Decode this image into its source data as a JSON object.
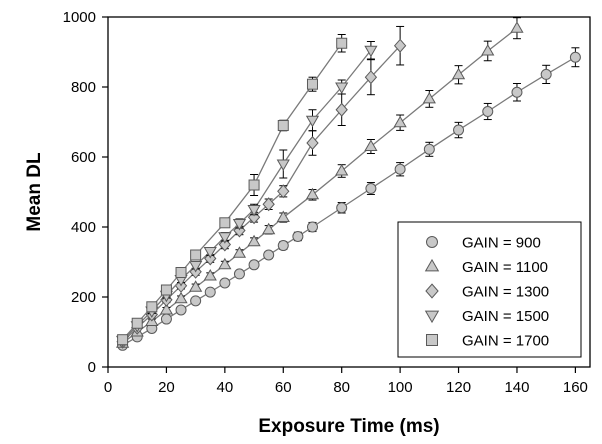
{
  "chart_data": {
    "type": "scatter",
    "title": "",
    "xlabel": "Exposure Time (ms)",
    "ylabel": "Mean DL",
    "xlim": [
      0,
      165
    ],
    "ylim": [
      0,
      1000
    ],
    "x_ticks": [
      0,
      20,
      40,
      60,
      80,
      100,
      120,
      140,
      160
    ],
    "y_ticks": [
      0,
      200,
      400,
      600,
      800,
      1000
    ],
    "grid": false,
    "legend_position": "bottom-right",
    "error_bars": true,
    "series": [
      {
        "name": "GAIN = 900",
        "marker": "circle",
        "x": [
          5,
          10,
          15,
          20,
          25,
          30,
          35,
          40,
          45,
          50,
          55,
          60,
          65,
          70,
          80,
          90,
          100,
          110,
          120,
          130,
          140,
          150,
          160
        ],
        "y": [
          62,
          86,
          110,
          137,
          163,
          189,
          214,
          240,
          266,
          292,
          320,
          347,
          373,
          400,
          455,
          510,
          565,
          622,
          677,
          730,
          785,
          836,
          885
        ],
        "err": [
          5,
          6,
          6,
          7,
          7,
          8,
          8,
          9,
          9,
          10,
          10,
          11,
          12,
          13,
          15,
          17,
          19,
          20,
          22,
          23,
          25,
          26,
          27
        ]
      },
      {
        "name": "GAIN = 1100",
        "marker": "triangle-up",
        "x": [
          5,
          10,
          15,
          20,
          25,
          30,
          35,
          40,
          45,
          50,
          55,
          60,
          70,
          80,
          90,
          100,
          110,
          120,
          130,
          140
        ],
        "y": [
          68,
          100,
          130,
          163,
          195,
          228,
          260,
          292,
          325,
          358,
          392,
          427,
          492,
          560,
          630,
          698,
          766,
          835,
          903,
          968
        ],
        "err": [
          5,
          6,
          7,
          7,
          8,
          9,
          9,
          10,
          10,
          11,
          12,
          13,
          15,
          18,
          20,
          22,
          24,
          26,
          28,
          30
        ]
      },
      {
        "name": "GAIN = 1300",
        "marker": "diamond",
        "x": [
          5,
          10,
          15,
          20,
          25,
          30,
          35,
          40,
          45,
          50,
          55,
          60,
          70,
          80,
          90,
          100
        ],
        "y": [
          72,
          112,
          150,
          192,
          232,
          272,
          310,
          350,
          390,
          428,
          465,
          502,
          640,
          735,
          828,
          918
        ],
        "err": [
          5,
          6,
          7,
          8,
          9,
          10,
          11,
          12,
          12,
          14,
          15,
          16,
          35,
          45,
          50,
          55
        ]
      },
      {
        "name": "GAIN = 1500",
        "marker": "triangle-down",
        "x": [
          5,
          10,
          15,
          20,
          25,
          30,
          35,
          40,
          45,
          50,
          60,
          70,
          80,
          90
        ],
        "y": [
          76,
          118,
          160,
          205,
          250,
          290,
          330,
          372,
          410,
          450,
          580,
          705,
          800,
          905
        ],
        "err": [
          5,
          6,
          7,
          8,
          9,
          10,
          11,
          12,
          13,
          15,
          40,
          30,
          20,
          25
        ]
      },
      {
        "name": "GAIN = 1700",
        "marker": "square",
        "x": [
          5,
          10,
          15,
          20,
          25,
          30,
          40,
          50,
          60,
          70,
          80
        ],
        "y": [
          78,
          125,
          172,
          220,
          270,
          320,
          412,
          520,
          690,
          808,
          925
        ],
        "err": [
          5,
          6,
          7,
          8,
          9,
          10,
          12,
          30,
          15,
          20,
          25
        ]
      }
    ]
  },
  "style": {
    "marker_fill": "#c8c8c8",
    "marker_stroke": "#5a5a5a",
    "line_color": "#7a7a7a",
    "axis_color": "#000000"
  }
}
